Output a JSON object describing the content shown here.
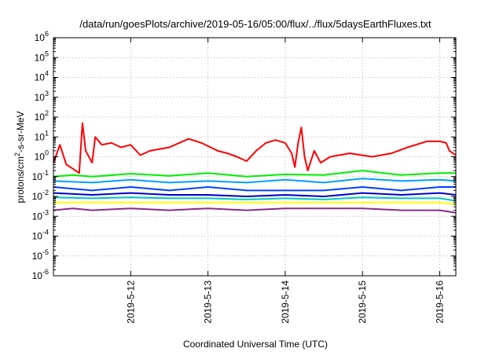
{
  "chart_data": {
    "type": "line",
    "title": "/data/run/goesPlots/archive/2019-05-16/05:00/flux/../flux/5daysEarthFluxes.txt",
    "xlabel": "Coordinated Universal Time (UTC)",
    "ylabel": "protons/cm2-s-sr-MeV",
    "y_scale": "log",
    "ylim_exponent": [
      -6,
      6
    ],
    "ytick_exponents": [
      -6,
      -5,
      -4,
      -3,
      -2,
      -1,
      0,
      1,
      2,
      3,
      4,
      5,
      6
    ],
    "xlim": [
      "2019-05-11 00:00",
      "2019-05-16 05:00"
    ],
    "xticks": [
      {
        "date": "2019-05-12 00:00",
        "label": "2019-5-12"
      },
      {
        "date": "2019-05-13 00:00",
        "label": "2019-5-13"
      },
      {
        "date": "2019-05-14 00:00",
        "label": "2019-5-14"
      },
      {
        "date": "2019-05-15 00:00",
        "label": "2019-5-15"
      },
      {
        "date": "2019-05-16 00:00",
        "label": "2019-5-16"
      }
    ],
    "grid": true,
    "series": [
      {
        "color": "#ff0000",
        "points": [
          [
            "2019-05-11 00:00",
            0.5
          ],
          [
            "2019-05-11 02:00",
            4.0
          ],
          [
            "2019-05-11 04:00",
            0.4
          ],
          [
            "2019-05-11 06:00",
            0.25
          ],
          [
            "2019-05-11 08:00",
            0.15
          ],
          [
            "2019-05-11 09:00",
            50
          ],
          [
            "2019-05-11 10:00",
            2.0
          ],
          [
            "2019-05-11 12:00",
            0.5
          ],
          [
            "2019-05-11 13:00",
            10
          ],
          [
            "2019-05-11 15:00",
            4.0
          ],
          [
            "2019-05-11 18:00",
            5.0
          ],
          [
            "2019-05-11 21:00",
            3.0
          ],
          [
            "2019-05-12 00:00",
            4.0
          ],
          [
            "2019-05-12 03:00",
            1.2
          ],
          [
            "2019-05-12 06:00",
            2.0
          ],
          [
            "2019-05-12 12:00",
            3.0
          ],
          [
            "2019-05-12 18:00",
            8.0
          ],
          [
            "2019-05-12 22:00",
            5.0
          ],
          [
            "2019-05-13 03:00",
            2.0
          ],
          [
            "2019-05-13 06:00",
            1.5
          ],
          [
            "2019-05-13 09:00",
            1.0
          ],
          [
            "2019-05-13 12:00",
            0.6
          ],
          [
            "2019-05-13 15:00",
            2.0
          ],
          [
            "2019-05-13 18:00",
            5.0
          ],
          [
            "2019-05-13 21:00",
            7.0
          ],
          [
            "2019-05-14 00:00",
            5.0
          ],
          [
            "2019-05-14 02:00",
            1.5
          ],
          [
            "2019-05-14 03:00",
            0.3
          ],
          [
            "2019-05-14 04:00",
            5.0
          ],
          [
            "2019-05-14 05:00",
            30
          ],
          [
            "2019-05-14 06:00",
            1.0
          ],
          [
            "2019-05-14 07:00",
            0.2
          ],
          [
            "2019-05-14 09:00",
            2.0
          ],
          [
            "2019-05-14 11:00",
            0.5
          ],
          [
            "2019-05-14 14:00",
            1.0
          ],
          [
            "2019-05-14 20:00",
            1.5
          ],
          [
            "2019-05-15 03:00",
            1.0
          ],
          [
            "2019-05-15 09:00",
            1.5
          ],
          [
            "2019-05-15 14:00",
            3.0
          ],
          [
            "2019-05-15 20:00",
            6.0
          ],
          [
            "2019-05-16 00:00",
            6.0
          ],
          [
            "2019-05-16 02:00",
            5.0
          ],
          [
            "2019-05-16 03:00",
            2.0
          ],
          [
            "2019-05-16 05:00",
            1.2
          ]
        ]
      },
      {
        "color": "#00ee00",
        "points": [
          [
            "2019-05-11 00:00",
            0.1
          ],
          [
            "2019-05-11 06:00",
            0.12
          ],
          [
            "2019-05-11 12:00",
            0.1
          ],
          [
            "2019-05-12 00:00",
            0.14
          ],
          [
            "2019-05-12 12:00",
            0.11
          ],
          [
            "2019-05-13 00:00",
            0.15
          ],
          [
            "2019-05-13 12:00",
            0.1
          ],
          [
            "2019-05-14 00:00",
            0.13
          ],
          [
            "2019-05-14 12:00",
            0.12
          ],
          [
            "2019-05-15 00:00",
            0.2
          ],
          [
            "2019-05-15 12:00",
            0.12
          ],
          [
            "2019-05-16 00:00",
            0.15
          ],
          [
            "2019-05-16 05:00",
            0.15
          ]
        ]
      },
      {
        "color": "#00a0ff",
        "points": [
          [
            "2019-05-11 00:00",
            0.06
          ],
          [
            "2019-05-11 12:00",
            0.05
          ],
          [
            "2019-05-12 00:00",
            0.07
          ],
          [
            "2019-05-12 12:00",
            0.05
          ],
          [
            "2019-05-13 00:00",
            0.06
          ],
          [
            "2019-05-13 12:00",
            0.05
          ],
          [
            "2019-05-14 00:00",
            0.07
          ],
          [
            "2019-05-14 12:00",
            0.05
          ],
          [
            "2019-05-15 00:00",
            0.08
          ],
          [
            "2019-05-15 12:00",
            0.06
          ],
          [
            "2019-05-16 00:00",
            0.07
          ],
          [
            "2019-05-16 05:00",
            0.06
          ]
        ]
      },
      {
        "color": "#0040ff",
        "points": [
          [
            "2019-05-11 00:00",
            0.03
          ],
          [
            "2019-05-11 12:00",
            0.02
          ],
          [
            "2019-05-12 00:00",
            0.03
          ],
          [
            "2019-05-12 12:00",
            0.02
          ],
          [
            "2019-05-13 00:00",
            0.03
          ],
          [
            "2019-05-13 12:00",
            0.02
          ],
          [
            "2019-05-14 00:00",
            0.02
          ],
          [
            "2019-05-14 12:00",
            0.02
          ],
          [
            "2019-05-15 00:00",
            0.03
          ],
          [
            "2019-05-15 12:00",
            0.02
          ],
          [
            "2019-05-16 00:00",
            0.03
          ],
          [
            "2019-05-16 05:00",
            0.03
          ]
        ]
      },
      {
        "color": "#0000c8",
        "points": [
          [
            "2019-05-11 00:00",
            0.015
          ],
          [
            "2019-05-11 12:00",
            0.012
          ],
          [
            "2019-05-12 00:00",
            0.015
          ],
          [
            "2019-05-12 12:00",
            0.012
          ],
          [
            "2019-05-13 00:00",
            0.012
          ],
          [
            "2019-05-13 12:00",
            0.01
          ],
          [
            "2019-05-14 00:00",
            0.012
          ],
          [
            "2019-05-14 12:00",
            0.01
          ],
          [
            "2019-05-15 00:00",
            0.015
          ],
          [
            "2019-05-15 12:00",
            0.012
          ],
          [
            "2019-05-16 00:00",
            0.015
          ],
          [
            "2019-05-16 05:00",
            0.012
          ]
        ]
      },
      {
        "color": "#00c8c8",
        "points": [
          [
            "2019-05-11 00:00",
            0.009
          ],
          [
            "2019-05-11 12:00",
            0.008
          ],
          [
            "2019-05-12 00:00",
            0.009
          ],
          [
            "2019-05-12 12:00",
            0.008
          ],
          [
            "2019-05-13 00:00",
            0.008
          ],
          [
            "2019-05-13 12:00",
            0.007
          ],
          [
            "2019-05-14 00:00",
            0.008
          ],
          [
            "2019-05-14 12:00",
            0.007
          ],
          [
            "2019-05-15 00:00",
            0.009
          ],
          [
            "2019-05-15 12:00",
            0.008
          ],
          [
            "2019-05-16 00:00",
            0.008
          ],
          [
            "2019-05-16 05:00",
            0.006
          ]
        ]
      },
      {
        "color": "#ffff00",
        "points": [
          [
            "2019-05-11 00:00",
            0.005
          ],
          [
            "2019-05-11 12:00",
            0.005
          ],
          [
            "2019-05-12 00:00",
            0.005
          ],
          [
            "2019-05-12 12:00",
            0.005
          ],
          [
            "2019-05-13 00:00",
            0.005
          ],
          [
            "2019-05-13 12:00",
            0.005
          ],
          [
            "2019-05-14 00:00",
            0.005
          ],
          [
            "2019-05-14 12:00",
            0.005
          ],
          [
            "2019-05-15 00:00",
            0.005
          ],
          [
            "2019-05-15 12:00",
            0.005
          ],
          [
            "2019-05-16 00:00",
            0.005
          ],
          [
            "2019-05-16 05:00",
            0.004
          ]
        ]
      },
      {
        "color": "#8b2a8b",
        "points": [
          [
            "2019-05-11 00:00",
            0.002
          ],
          [
            "2019-05-11 06:00",
            0.0025
          ],
          [
            "2019-05-11 12:00",
            0.002
          ],
          [
            "2019-05-12 00:00",
            0.0025
          ],
          [
            "2019-05-12 12:00",
            0.002
          ],
          [
            "2019-05-13 00:00",
            0.0025
          ],
          [
            "2019-05-13 12:00",
            0.002
          ],
          [
            "2019-05-14 00:00",
            0.0025
          ],
          [
            "2019-05-14 12:00",
            0.0025
          ],
          [
            "2019-05-15 00:00",
            0.0025
          ],
          [
            "2019-05-15 12:00",
            0.002
          ],
          [
            "2019-05-16 00:00",
            0.002
          ],
          [
            "2019-05-16 05:00",
            0.0015
          ]
        ]
      }
    ]
  }
}
